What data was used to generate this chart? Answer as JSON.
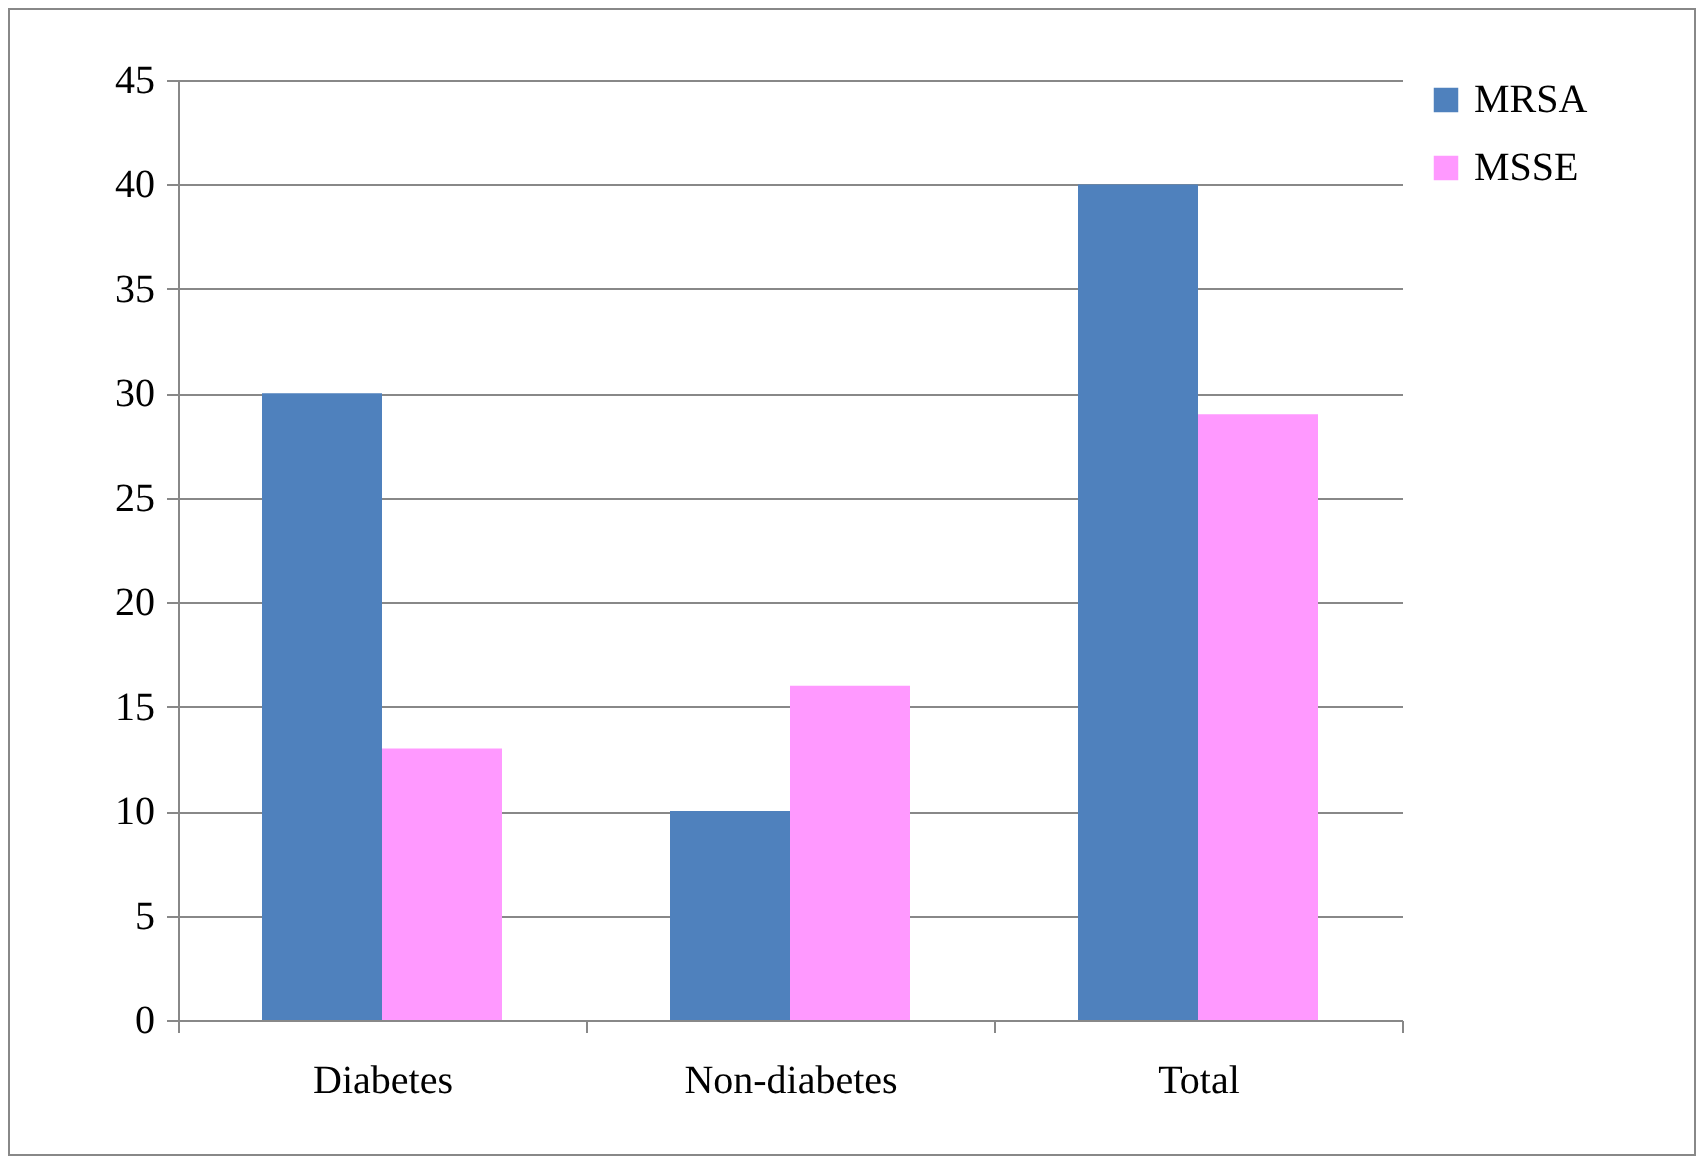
{
  "chart_data": {
    "type": "bar",
    "categories": [
      "Diabetes",
      "Non-diabetes",
      "Total"
    ],
    "series": [
      {
        "name": "MRSA",
        "color": "#4f81bd",
        "values": [
          30,
          10,
          40
        ]
      },
      {
        "name": "MSSE",
        "color": "#ff99ff",
        "values": [
          13,
          16,
          29
        ]
      }
    ],
    "ylim": [
      0,
      45
    ],
    "yticks": [
      0,
      5,
      10,
      15,
      20,
      25,
      30,
      35,
      40,
      45
    ],
    "grid": "y",
    "legend": "right"
  }
}
